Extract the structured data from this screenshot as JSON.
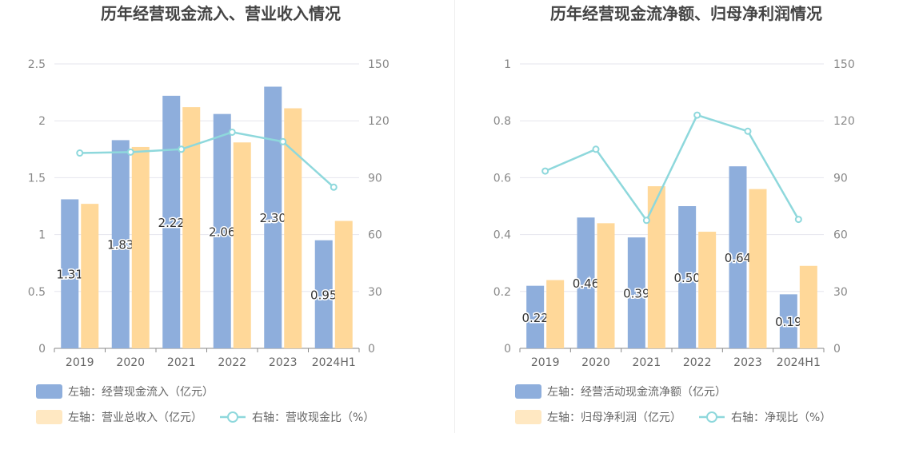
{
  "chart_data": [
    {
      "type": "bar",
      "title": "历年经营现金流入、营业收入情况",
      "categories": [
        "2019",
        "2020",
        "2021",
        "2022",
        "2023",
        "2024H1"
      ],
      "left_axis": {
        "min": 0,
        "max": 2.5,
        "ticks": [
          "0",
          "0.5",
          "1",
          "1.5",
          "2",
          "2.5"
        ]
      },
      "right_axis": {
        "min": 0,
        "max": 150,
        "ticks": [
          "0",
          "30",
          "60",
          "90",
          "120",
          "150"
        ]
      },
      "grid": true,
      "legend_position": "bottom",
      "series": [
        {
          "name": "左轴：经营现金流入（亿元）",
          "type": "bar",
          "axis": "left",
          "color": "#8eaedc",
          "values": [
            1.31,
            1.83,
            2.22,
            2.06,
            2.3,
            0.95
          ],
          "labels": [
            "1.31",
            "1.83",
            "2.22",
            "2.06",
            "2.30",
            "0.95"
          ]
        },
        {
          "name": "左轴：营业总收入（亿元）",
          "type": "bar",
          "axis": "left",
          "color": "#ffd899",
          "values": [
            1.27,
            1.77,
            2.12,
            1.81,
            2.11,
            1.12
          ]
        },
        {
          "name": "右轴：营收现金比（%）",
          "type": "line",
          "axis": "right",
          "color": "#8ed8dc",
          "values": [
            103,
            103.5,
            105,
            114,
            109,
            85
          ]
        }
      ]
    },
    {
      "type": "bar",
      "title": "历年经营现金流净额、归母净利润情况",
      "categories": [
        "2019",
        "2020",
        "2021",
        "2022",
        "2023",
        "2024H1"
      ],
      "left_axis": {
        "min": 0,
        "max": 1,
        "ticks": [
          "0",
          "0.2",
          "0.4",
          "0.6",
          "0.8",
          "1"
        ]
      },
      "right_axis": {
        "min": 0,
        "max": 150,
        "ticks": [
          "0",
          "30",
          "60",
          "90",
          "120",
          "150"
        ]
      },
      "grid": true,
      "legend_position": "bottom",
      "series": [
        {
          "name": "左轴：经营活动现金流净额（亿元）",
          "type": "bar",
          "axis": "left",
          "color": "#8eaedc",
          "values": [
            0.22,
            0.46,
            0.39,
            0.5,
            0.64,
            0.19
          ],
          "labels": [
            "0.22",
            "0.46",
            "0.39",
            "0.50",
            "0.64",
            "0.19"
          ]
        },
        {
          "name": "左轴：归母净利润（亿元）",
          "type": "bar",
          "axis": "left",
          "color": "#ffd899",
          "values": [
            0.24,
            0.44,
            0.57,
            0.41,
            0.56,
            0.29
          ]
        },
        {
          "name": "右轴：净现比（%）",
          "type": "line",
          "axis": "right",
          "color": "#8ed8dc",
          "values": [
            93.5,
            105,
            67.5,
            123,
            114.5,
            68
          ]
        }
      ]
    }
  ]
}
